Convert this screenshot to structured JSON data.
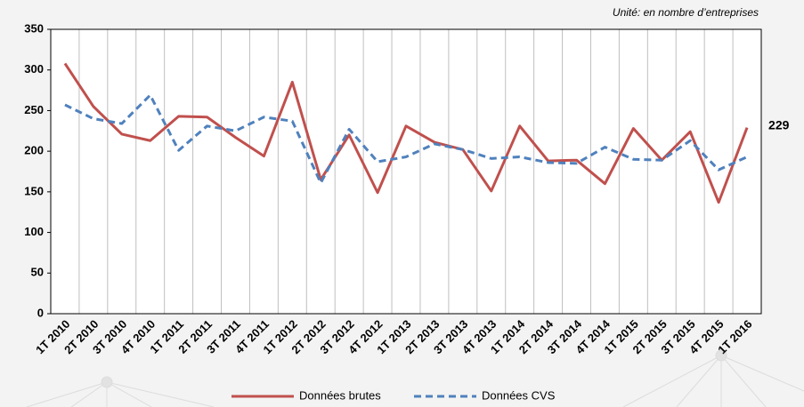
{
  "chart_data": {
    "type": "line",
    "annotation": "Unité: en nombre d’entreprises",
    "categories": [
      "1T 2010",
      "2T 2010",
      "3T 2010",
      "4T 2010",
      "1T 2011",
      "2T 2011",
      "3T 2011",
      "4T 2011",
      "1T 2012",
      "2T 2012",
      "3T 2012",
      "4T 2012",
      "1T 2013",
      "2T 2013",
      "3T 2013",
      "4T 2013",
      "1T 2014",
      "2T 2014",
      "3T 2014",
      "4T 2014",
      "1T 2015",
      "2T 2015",
      "3T 2015",
      "4T 2015",
      "1T 2016"
    ],
    "series": [
      {
        "name": "Données brutes",
        "color": "#c0504d",
        "dash": false,
        "values": [
          308,
          255,
          221,
          213,
          243,
          242,
          217,
          194,
          285,
          165,
          220,
          149,
          231,
          211,
          202,
          151,
          231,
          188,
          189,
          160,
          228,
          189,
          224,
          137,
          229
        ]
      },
      {
        "name": "Données CVS",
        "color": "#4f81bd",
        "dash": true,
        "values": [
          257,
          240,
          234,
          269,
          201,
          231,
          225,
          242,
          237,
          161,
          227,
          187,
          193,
          209,
          202,
          191,
          193,
          186,
          185,
          205,
          190,
          189,
          213,
          177,
          193
        ]
      }
    ],
    "ylim": [
      0,
      350
    ],
    "yticks": [
      0,
      50,
      100,
      150,
      200,
      250,
      300,
      350
    ],
    "grid": true
  }
}
